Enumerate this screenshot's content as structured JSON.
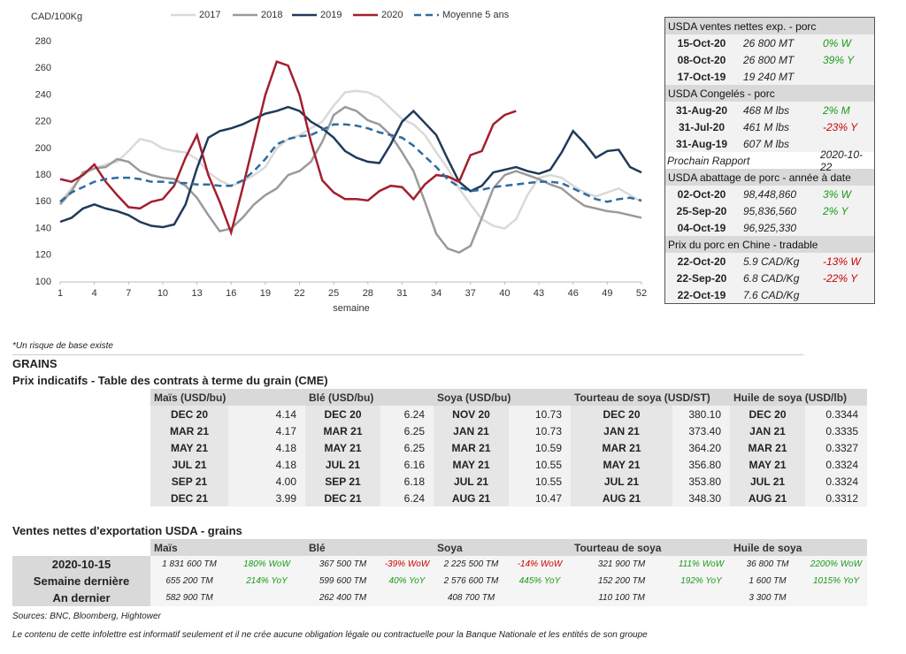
{
  "chart_data": {
    "type": "line",
    "ylabel": "CAD/100Kg",
    "xlabel": "semaine",
    "x": [
      1,
      2,
      3,
      4,
      5,
      6,
      7,
      8,
      9,
      10,
      11,
      12,
      13,
      14,
      15,
      16,
      17,
      18,
      19,
      20,
      21,
      22,
      23,
      24,
      25,
      26,
      27,
      28,
      29,
      30,
      31,
      32,
      33,
      34,
      35,
      36,
      37,
      38,
      39,
      40,
      41,
      42,
      43,
      44,
      45,
      46,
      47,
      48,
      49,
      50,
      51,
      52
    ],
    "xlim": [
      1,
      52
    ],
    "xticks": [
      1,
      4,
      7,
      10,
      13,
      16,
      19,
      22,
      25,
      28,
      31,
      34,
      37,
      40,
      43,
      46,
      49,
      52
    ],
    "ylim": [
      100,
      280
    ],
    "yticks": [
      100,
      120,
      140,
      160,
      180,
      200,
      220,
      240,
      260,
      280
    ],
    "grid": false,
    "legend": "top",
    "series": [
      {
        "name": "2017",
        "color": "#d9d9d9",
        "style": "solid",
        "values": [
          160,
          170,
          180,
          185,
          188,
          190,
          198,
          207,
          205,
          200,
          198,
          197,
          192,
          182,
          176,
          172,
          175,
          180,
          186,
          200,
          207,
          210,
          215,
          220,
          232,
          242,
          243,
          242,
          238,
          230,
          222,
          218,
          210,
          197,
          185,
          170,
          158,
          147,
          142,
          140,
          147,
          165,
          178,
          180,
          178,
          172,
          167,
          164,
          167,
          170,
          165,
          160
        ]
      },
      {
        "name": "2018",
        "color": "#9a9a9a",
        "style": "solid",
        "values": [
          158,
          168,
          182,
          185,
          186,
          192,
          190,
          183,
          180,
          178,
          177,
          172,
          163,
          150,
          138,
          140,
          148,
          158,
          165,
          170,
          180,
          183,
          190,
          205,
          225,
          231,
          228,
          221,
          218,
          210,
          197,
          183,
          160,
          136,
          125,
          122,
          127,
          148,
          170,
          180,
          183,
          180,
          177,
          173,
          170,
          163,
          157,
          155,
          153,
          152,
          150,
          148
        ]
      },
      {
        "name": "2019",
        "color": "#1f3a5a",
        "style": "solid",
        "values": [
          145,
          148,
          155,
          158,
          155,
          153,
          150,
          145,
          142,
          141,
          143,
          158,
          185,
          208,
          213,
          215,
          218,
          222,
          226,
          228,
          231,
          228,
          220,
          215,
          208,
          198,
          193,
          190,
          189,
          203,
          220,
          228,
          219,
          210,
          192,
          175,
          168,
          172,
          182,
          184,
          186,
          183,
          181,
          184,
          197,
          213,
          204,
          193,
          198,
          199,
          186,
          182
        ]
      },
      {
        "name": "2020",
        "color": "#a31f2e",
        "style": "solid",
        "values": [
          177,
          175,
          180,
          188,
          175,
          165,
          156,
          155,
          160,
          162,
          172,
          193,
          210,
          180,
          160,
          137,
          170,
          205,
          240,
          265,
          262,
          240,
          205,
          176,
          167,
          162,
          162,
          161,
          168,
          172,
          171,
          162,
          173,
          180,
          179,
          175,
          195,
          198,
          218,
          225,
          228,
          null,
          null,
          null,
          null,
          null,
          null,
          null,
          null,
          null,
          null,
          null
        ]
      },
      {
        "name": "Moyenne 5 ans",
        "color": "#2e6b9e",
        "style": "dashed",
        "values": [
          160,
          167,
          171,
          175,
          177,
          178,
          178,
          177,
          175,
          175,
          174,
          174,
          173,
          173,
          172,
          172,
          176,
          183,
          192,
          203,
          207,
          209,
          210,
          214,
          218,
          218,
          217,
          215,
          212,
          210,
          208,
          202,
          194,
          186,
          177,
          171,
          168,
          169,
          171,
          172,
          173,
          174,
          175,
          175,
          174,
          170,
          166,
          162,
          160,
          162,
          163,
          161
        ]
      }
    ]
  },
  "side_panel": {
    "sections": [
      {
        "title": "USDA ventes nettes exp. - porc",
        "rows": [
          {
            "date": "15-Oct-20",
            "value": "26 800  MT",
            "change": "0% W",
            "color": "#1a9a1a"
          },
          {
            "date": "08-Oct-20",
            "value": "26 800  MT",
            "change": "39% Y",
            "color": "#1a9a1a"
          },
          {
            "date": "17-Oct-19",
            "value": "19 240  MT"
          }
        ]
      },
      {
        "title": "USDA Congelés - porc",
        "rows": [
          {
            "date": "31-Aug-20",
            "value": "468 M lbs",
            "change": "2% M",
            "color": "#1a9a1a"
          },
          {
            "date": "31-Jul-20",
            "value": "461 M lbs",
            "change": "-23% Y",
            "color": "#cc0000"
          },
          {
            "date": "31-Aug-19",
            "value": "607 M lbs"
          }
        ],
        "footer": {
          "label": "Prochain Rapport",
          "value": "2020-10-22"
        }
      },
      {
        "title": "USDA abattage de porc - année à date",
        "rows": [
          {
            "date": "02-Oct-20",
            "value": "98,448,860",
            "change": "3% W",
            "color": "#1a9a1a"
          },
          {
            "date": "25-Sep-20",
            "value": "95,836,560",
            "change": "2% Y",
            "color": "#1a9a1a"
          },
          {
            "date": "04-Oct-19",
            "value": "96,925,330"
          }
        ]
      },
      {
        "title": "Prix du porc en Chine - tradable",
        "rows": [
          {
            "date": "22-Oct-20",
            "value": "5.9 CAD/Kg",
            "change": "-13% W",
            "color": "#cc0000"
          },
          {
            "date": "22-Sep-20",
            "value": "6.8 CAD/Kg",
            "change": "-22% Y",
            "color": "#cc0000"
          },
          {
            "date": "22-Oct-19",
            "value": "7.6 CAD/Kg"
          }
        ]
      }
    ]
  },
  "note": "*Un risque de base existe",
  "section_title": "GRAINS",
  "futures": {
    "title": "Prix indicatifs - Table des contrats à terme du grain (CME)",
    "groups": [
      {
        "header": "Maïs (USD/bu)",
        "rows": [
          [
            "DEC 20",
            "4.14"
          ],
          [
            "MAR 21",
            "4.17"
          ],
          [
            "MAY 21",
            "4.18"
          ],
          [
            "JUL 21",
            "4.18"
          ],
          [
            "SEP 21",
            "4.00"
          ],
          [
            "DEC 21",
            "3.99"
          ]
        ]
      },
      {
        "header": "Blé (USD/bu)",
        "rows": [
          [
            "DEC 20",
            "6.24"
          ],
          [
            "MAR 21",
            "6.25"
          ],
          [
            "MAY 21",
            "6.25"
          ],
          [
            "JUL 21",
            "6.16"
          ],
          [
            "SEP 21",
            "6.18"
          ],
          [
            "DEC 21",
            "6.24"
          ]
        ]
      },
      {
        "header": "Soya (USD/bu)",
        "rows": [
          [
            "NOV 20",
            "10.73"
          ],
          [
            "JAN 21",
            "10.73"
          ],
          [
            "MAR 21",
            "10.59"
          ],
          [
            "MAY 21",
            "10.55"
          ],
          [
            "JUL 21",
            "10.55"
          ],
          [
            "AUG 21",
            "10.47"
          ]
        ]
      },
      {
        "header": "Tourteau de soya (USD/ST)",
        "rows": [
          [
            "DEC 20",
            "380.10"
          ],
          [
            "JAN 21",
            "373.40"
          ],
          [
            "MAR 21",
            "364.20"
          ],
          [
            "MAY 21",
            "356.80"
          ],
          [
            "JUL 21",
            "353.80"
          ],
          [
            "AUG 21",
            "348.30"
          ]
        ]
      },
      {
        "header": "Huile de soya (USD/lb)",
        "rows": [
          [
            "DEC 20",
            "0.3344"
          ],
          [
            "JAN 21",
            "0.3335"
          ],
          [
            "MAR 21",
            "0.3327"
          ],
          [
            "MAY 21",
            "0.3324"
          ],
          [
            "JUL 21",
            "0.3324"
          ],
          [
            "AUG 21",
            "0.3312"
          ]
        ]
      }
    ]
  },
  "exports": {
    "title": "Ventes nettes d'exportation USDA - grains",
    "row_labels": [
      "2020-10-15",
      "Semaine dernière",
      "An dernier"
    ],
    "groups": [
      {
        "header": "Maïs",
        "cells": [
          {
            "value": "1 831 600 TM",
            "change": "180% WoW",
            "color": "#1a9a1a"
          },
          {
            "value": "655 200 TM",
            "change": "214% YoY",
            "color": "#1a9a1a"
          },
          {
            "value": "582 900 TM"
          }
        ]
      },
      {
        "header": "Blé",
        "cells": [
          {
            "value": "367 500 TM",
            "change": "-39% WoW",
            "color": "#cc0000"
          },
          {
            "value": "599 600 TM",
            "change": "40% YoY",
            "color": "#1a9a1a"
          },
          {
            "value": "262 400 TM"
          }
        ]
      },
      {
        "header": "Soya",
        "cells": [
          {
            "value": "2 225 500 TM",
            "change": "-14% WoW",
            "color": "#cc0000"
          },
          {
            "value": "2 576 600 TM",
            "change": "445% YoY",
            "color": "#1a9a1a"
          },
          {
            "value": "408 700 TM"
          }
        ]
      },
      {
        "header": "Tourteau de soya",
        "cells": [
          {
            "value": "321 900 TM",
            "change": "111% WoW",
            "color": "#1a9a1a"
          },
          {
            "value": "152 200 TM",
            "change": "192% YoY",
            "color": "#1a9a1a"
          },
          {
            "value": "110 100 TM"
          }
        ]
      },
      {
        "header": "Huile de soya",
        "cells": [
          {
            "value": "36 800 TM",
            "change": "2200% WoW",
            "color": "#1a9a1a"
          },
          {
            "value": "1 600 TM",
            "change": "1015% YoY",
            "color": "#1a9a1a"
          },
          {
            "value": "3 300 TM"
          }
        ]
      }
    ]
  },
  "sources": "Sources: BNC, Bloomberg, Hightower",
  "disclaimer": "Le contenu de cette infolettre est informatif seulement et il ne crée aucune obligation légale ou contractuelle pour la Banque Nationale et les entités de son groupe"
}
